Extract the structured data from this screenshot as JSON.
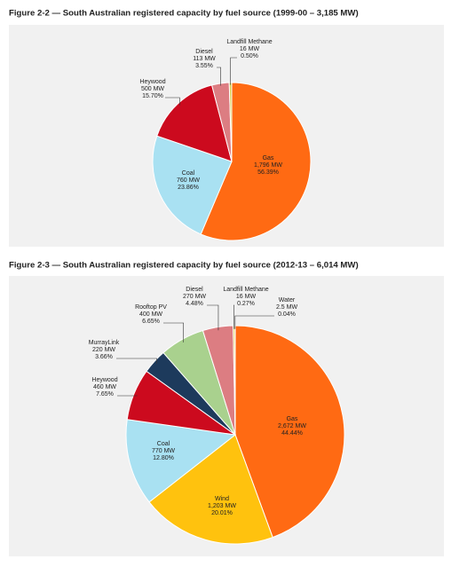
{
  "chart_data": [
    {
      "type": "pie",
      "title": "Figure 2-2 — South Australian registered capacity by fuel source (1999-00 – 3,185 MW)",
      "categories": [
        "Gas",
        "Coal",
        "Heywood",
        "Diesel",
        "Landfill Methane"
      ],
      "values": [
        1796,
        760,
        500,
        113,
        16
      ],
      "value_labels": [
        "1,796 MW",
        "760 MW",
        "500 MW",
        "113 MW",
        "16 MW"
      ],
      "percents": [
        56.39,
        23.86,
        15.7,
        3.55,
        0.5
      ],
      "percent_labels": [
        "56.39%",
        "23.86%",
        "15.70%",
        "3.55%",
        "0.50%"
      ],
      "colors": [
        "#ff6a13",
        "#a9e1f2",
        "#cc0a1e",
        "#dc7d82",
        "#d9cf4f"
      ]
    },
    {
      "type": "pie",
      "title": "Figure 2-3 — South Australian registered capacity by fuel source (2012-13 – 6,014 MW)",
      "categories": [
        "Gas",
        "Wind",
        "Coal",
        "Heywood",
        "MurrayLink",
        "Rooftop PV",
        "Diesel",
        "Landfill Methane",
        "Water"
      ],
      "values": [
        2672,
        1203,
        770,
        460,
        220,
        400,
        270,
        16,
        2.5
      ],
      "value_labels": [
        "2,672 MW",
        "1,203 MW",
        "770 MW",
        "460 MW",
        "220 MW",
        "400 MW",
        "270 MW",
        "16 MW",
        "2.5 MW"
      ],
      "percents": [
        44.44,
        20.01,
        12.8,
        7.65,
        3.66,
        6.65,
        4.48,
        0.27,
        0.04
      ],
      "percent_labels": [
        "44.44%",
        "20.01%",
        "12.80%",
        "7.65%",
        "3.66%",
        "6.65%",
        "4.48%",
        "0.27%",
        "0.04%"
      ],
      "colors": [
        "#ff6a13",
        "#ffc20e",
        "#a9e1f2",
        "#cc0a1e",
        "#1d3a5c",
        "#a9d18e",
        "#dc7d82",
        "#d9cf4f",
        "#7fc6e6"
      ]
    }
  ]
}
